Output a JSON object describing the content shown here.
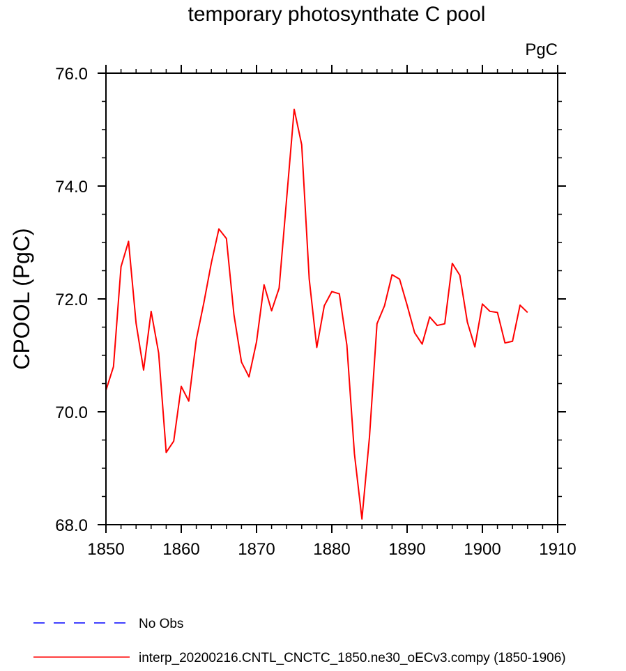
{
  "chart_data": {
    "type": "line",
    "title": "temporary photosynthate C pool",
    "units_label": "PgC",
    "ylabel": "CPOOL  (PgC)",
    "xlabel": "",
    "xlim": [
      1850,
      1910
    ],
    "ylim": [
      68.0,
      76.0
    ],
    "x_ticks": [
      1850,
      1860,
      1870,
      1880,
      1890,
      1900,
      1910
    ],
    "x_tick_labels": [
      "1850",
      "1860",
      "1870",
      "1880",
      "1890",
      "1900",
      "1910"
    ],
    "y_ticks": [
      68.0,
      70.0,
      72.0,
      74.0,
      76.0
    ],
    "y_tick_labels": [
      "68.0",
      "70.0",
      "72.0",
      "74.0",
      "76.0"
    ],
    "grid": false,
    "legend_position": "bottom-left",
    "legend": [
      {
        "name": "No Obs",
        "color": "#0000ff",
        "style": "dashed"
      },
      {
        "name": "interp_20200216.CNTL_CNCTC_1850.ne30_oECv3.compy (1850-1906)",
        "color": "#ff0000",
        "style": "solid"
      }
    ],
    "series": [
      {
        "name": "interp_20200216.CNTL_CNCTC_1850.ne30_oECv3.compy (1850-1906)",
        "color": "#ff0000",
        "x": [
          1850,
          1851,
          1852,
          1853,
          1854,
          1855,
          1856,
          1857,
          1858,
          1859,
          1860,
          1861,
          1862,
          1863,
          1864,
          1865,
          1866,
          1867,
          1868,
          1869,
          1870,
          1871,
          1872,
          1873,
          1874,
          1875,
          1876,
          1877,
          1878,
          1879,
          1880,
          1881,
          1882,
          1883,
          1884,
          1885,
          1886,
          1887,
          1888,
          1889,
          1890,
          1891,
          1892,
          1893,
          1894,
          1895,
          1896,
          1897,
          1898,
          1899,
          1900,
          1901,
          1902,
          1903,
          1904,
          1905,
          1906
        ],
        "y": [
          70.38,
          70.8,
          72.57,
          73.02,
          71.57,
          70.74,
          71.78,
          71.04,
          69.28,
          69.48,
          70.45,
          70.19,
          71.28,
          71.93,
          72.64,
          73.24,
          73.07,
          71.72,
          70.88,
          70.62,
          71.24,
          72.25,
          71.79,
          72.19,
          73.78,
          75.36,
          74.73,
          72.35,
          71.14,
          71.88,
          72.13,
          72.09,
          71.18,
          69.26,
          68.1,
          69.55,
          71.56,
          71.88,
          72.43,
          72.35,
          71.89,
          71.4,
          71.2,
          71.68,
          71.53,
          71.56,
          72.63,
          72.42,
          71.59,
          71.15,
          71.91,
          71.78,
          71.76,
          71.22,
          71.25,
          71.89,
          71.76
        ]
      }
    ]
  }
}
